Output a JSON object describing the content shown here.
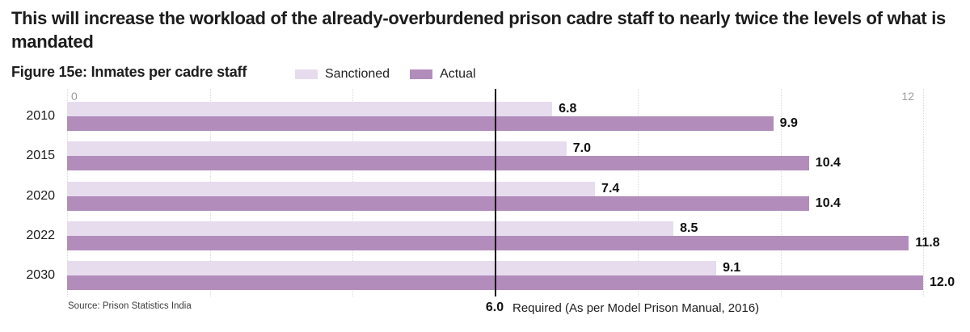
{
  "header": {
    "title": "This will increase the workload of the already-overburdened prison cadre staff to nearly twice the levels of what is mandated"
  },
  "chart": {
    "figure_label": "Figure 15e: Inmates per cadre staff",
    "tick_min": "0",
    "tick_max": "12",
    "reference_value_label": "6.0",
    "reference_label": "Required (As per Model Prison Manual, 2016)"
  },
  "chart_data": {
    "type": "bar",
    "orientation": "horizontal",
    "title": "Figure 15e: Inmates per cadre staff",
    "categories": [
      "2010",
      "2015",
      "2020",
      "2022",
      "2030"
    ],
    "series": [
      {
        "name": "Sanctioned",
        "color": "#e7dcee",
        "values": [
          6.8,
          7.0,
          7.4,
          8.5,
          9.1
        ]
      },
      {
        "name": "Actual",
        "color": "#b28dbb",
        "values": [
          9.9,
          10.4,
          10.4,
          11.8,
          12.0
        ]
      }
    ],
    "xlim": [
      0,
      12
    ],
    "tick_labels": [
      "0",
      "12"
    ],
    "gridline_values": [
      0,
      2,
      4,
      8,
      10,
      12
    ],
    "grid_style": "dotted",
    "legend_position": "top",
    "value_label_decimals": 1,
    "reference_line": {
      "value": 6.0,
      "label": "Required (As per Model Prison Manual, 2016)"
    }
  },
  "source": "Source: Prison Statistics India",
  "colors": {
    "sanctioned": "#e7dcee",
    "actual": "#b28dbb",
    "title_text": "#1c1c1c",
    "tick_text": "#9c9c9c",
    "gridline": "#d9d9d9",
    "reference_line": "#111111"
  }
}
